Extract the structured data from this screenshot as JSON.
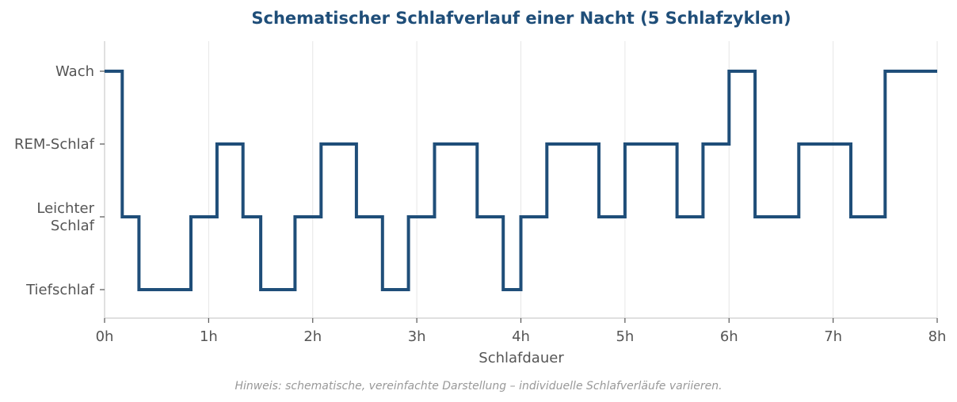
{
  "chart_data": {
    "type": "line",
    "step": true,
    "title": "Schematischer Schlafverlauf einer Nacht (5 Schlafzyklen)",
    "xlabel": "Schlafdauer",
    "ylabel": "",
    "xlim": [
      0,
      8
    ],
    "x_ticks": [
      {
        "value": 0,
        "label": "0h"
      },
      {
        "value": 1,
        "label": "1h"
      },
      {
        "value": 2,
        "label": "2h"
      },
      {
        "value": 3,
        "label": "3h"
      },
      {
        "value": 4,
        "label": "4h"
      },
      {
        "value": 5,
        "label": "5h"
      },
      {
        "value": 6,
        "label": "6h"
      },
      {
        "value": 7,
        "label": "7h"
      },
      {
        "value": 8,
        "label": "8h"
      }
    ],
    "y_categories": [
      {
        "value": 0,
        "lines": [
          "Tiefschlaf"
        ]
      },
      {
        "value": 1,
        "lines": [
          "Leichter",
          "Schlaf"
        ]
      },
      {
        "value": 2,
        "lines": [
          "REM-Schlaf"
        ]
      },
      {
        "value": 3,
        "lines": [
          "Wach"
        ]
      }
    ],
    "grid": "vertical",
    "color": "#1f4e79",
    "points": [
      [
        0,
        3
      ],
      [
        0.17,
        3
      ],
      [
        0.17,
        1
      ],
      [
        0.33,
        1
      ],
      [
        0.33,
        0
      ],
      [
        0.83,
        0
      ],
      [
        0.83,
        1
      ],
      [
        1.08,
        1
      ],
      [
        1.08,
        2
      ],
      [
        1.33,
        2
      ],
      [
        1.33,
        1
      ],
      [
        1.5,
        1
      ],
      [
        1.5,
        0
      ],
      [
        1.83,
        0
      ],
      [
        1.83,
        1
      ],
      [
        2.08,
        1
      ],
      [
        2.08,
        2
      ],
      [
        2.42,
        2
      ],
      [
        2.42,
        1
      ],
      [
        2.67,
        1
      ],
      [
        2.67,
        0
      ],
      [
        2.92,
        0
      ],
      [
        2.92,
        1
      ],
      [
        3.17,
        1
      ],
      [
        3.17,
        2
      ],
      [
        3.58,
        2
      ],
      [
        3.58,
        1
      ],
      [
        3.83,
        1
      ],
      [
        3.83,
        0
      ],
      [
        4.0,
        0
      ],
      [
        4.0,
        1
      ],
      [
        4.25,
        1
      ],
      [
        4.25,
        2
      ],
      [
        4.75,
        2
      ],
      [
        4.75,
        1
      ],
      [
        5.0,
        1
      ],
      [
        5.0,
        2
      ],
      [
        5.5,
        2
      ],
      [
        5.5,
        1
      ],
      [
        5.75,
        1
      ],
      [
        5.75,
        2
      ],
      [
        6.0,
        2
      ],
      [
        6.0,
        3
      ],
      [
        6.25,
        3
      ],
      [
        6.25,
        1
      ],
      [
        6.67,
        1
      ],
      [
        6.67,
        2
      ],
      [
        7.17,
        2
      ],
      [
        7.17,
        1
      ],
      [
        7.5,
        1
      ],
      [
        7.5,
        3
      ],
      [
        8.0,
        3
      ]
    ],
    "note": "Hinweis: schematische, vereinfachte Darstellung – individuelle Schlafverläufe variieren."
  }
}
